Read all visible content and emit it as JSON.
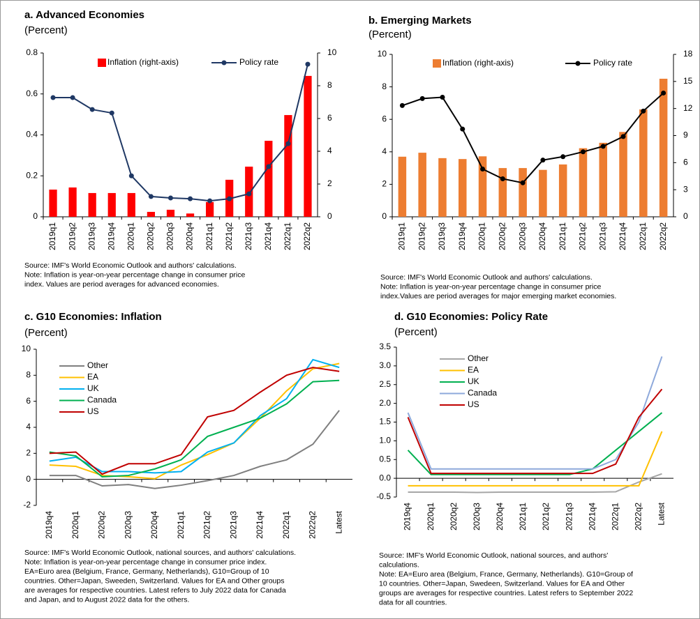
{
  "chart_data": [
    {
      "type": "combo",
      "title": "a. Advanced Economies",
      "subtitle": "(Percent)",
      "categories": [
        "2019q1",
        "2019q2",
        "2019q3",
        "2019q4",
        "2020q1",
        "2020q2",
        "2020q3",
        "2020q4",
        "2021q1",
        "2021q2",
        "2021q3",
        "2021q4",
        "2022q1",
        "2022q2"
      ],
      "series": [
        {
          "name": "Inflation (right-axis)",
          "type": "bar",
          "axis": "y2",
          "color": "#ff0000",
          "values": [
            1.66,
            1.79,
            1.45,
            1.45,
            1.45,
            0.3,
            0.43,
            0.2,
            0.9,
            2.26,
            3.06,
            4.64,
            6.21,
            8.6
          ]
        },
        {
          "name": "Policy rate",
          "type": "line",
          "color": "#1f3864",
          "values": [
            0.582,
            0.582,
            0.524,
            0.507,
            0.2,
            0.099,
            0.092,
            0.088,
            0.078,
            0.088,
            0.112,
            0.245,
            0.357,
            0.745
          ]
        }
      ],
      "ylim": [
        0,
        0.8
      ],
      "yticks": [
        0,
        0.2,
        0.4,
        0.6,
        0.8
      ],
      "y2lim": [
        0,
        10
      ],
      "y2ticks": [
        0,
        2,
        4,
        6,
        8,
        10
      ],
      "legend": "top",
      "notes": [
        "Source: IMF's World Economic Outlook and authors' calculations.",
        "Note: Inflation is year-on-year percentage change in consumer price",
        "index. Values are period averages for advanced economies."
      ]
    },
    {
      "type": "combo",
      "title": "b. Emerging Markets",
      "subtitle": "(Percent)",
      "categories": [
        "2019q1",
        "2019q2",
        "2019q3",
        "2019q4",
        "2020q1",
        "2020q2",
        "2020q3",
        "2020q4",
        "2021q1",
        "2021q2",
        "2021q3",
        "2021q4",
        "2022q1",
        "2022q2"
      ],
      "series": [
        {
          "name": "Inflation (right-axis)",
          "type": "bar",
          "axis": "y2",
          "color": "#ed7d31",
          "values": [
            6.66,
            7.1,
            6.5,
            6.4,
            6.7,
            5.4,
            5.4,
            5.2,
            5.8,
            7.6,
            8.2,
            9.4,
            11.9,
            15.3
          ]
        },
        {
          "name": "Policy rate",
          "type": "line",
          "color": "#000000",
          "values": [
            6.85,
            7.28,
            7.36,
            5.4,
            2.94,
            2.34,
            2.09,
            3.49,
            3.7,
            4.0,
            4.34,
            4.94,
            6.51,
            7.62
          ]
        }
      ],
      "ylim": [
        0,
        10
      ],
      "yticks": [
        0,
        2,
        4,
        6,
        8,
        10
      ],
      "y2lim": [
        0,
        18
      ],
      "y2ticks": [
        0,
        3,
        6,
        9,
        12,
        15,
        18
      ],
      "legend": "top",
      "notes": [
        "Source: IMF's World Economic Outlook and authors' calculations.",
        "Note: Inflation is year-on-year percentage change in consumer price",
        "index.Values are period averages for  major emerging market economies."
      ]
    },
    {
      "type": "line",
      "title": "c. G10 Economies: Inflation",
      "subtitle": "(Percent)",
      "categories": [
        "2019q4",
        "2020q1",
        "2020q2",
        "2020q3",
        "2020q4",
        "2021q1",
        "2021q2",
        "2021q3",
        "2021q4",
        "2022q1",
        "2022q2",
        "Latest"
      ],
      "series": [
        {
          "name": "Other",
          "color": "#7f7f7f",
          "values": [
            0.3,
            0.3,
            -0.5,
            -0.4,
            -0.7,
            -0.45,
            -0.1,
            0.3,
            1.0,
            1.5,
            2.7,
            5.3
          ]
        },
        {
          "name": "EA",
          "color": "#ffc000",
          "values": [
            1.1,
            1.0,
            0.3,
            0.2,
            0.05,
            1.1,
            1.9,
            2.8,
            4.7,
            6.8,
            8.5,
            8.9
          ]
        },
        {
          "name": "UK",
          "color": "#00b0f0",
          "values": [
            1.4,
            1.7,
            0.6,
            0.6,
            0.5,
            0.6,
            2.1,
            2.8,
            4.9,
            6.2,
            9.2,
            8.6
          ]
        },
        {
          "name": "Canada",
          "color": "#00b050",
          "values": [
            2.1,
            1.8,
            0.2,
            0.3,
            0.8,
            1.5,
            3.3,
            4.0,
            4.7,
            5.8,
            7.5,
            7.6
          ]
        },
        {
          "name": "US",
          "color": "#c00000",
          "values": [
            2.0,
            2.1,
            0.4,
            1.2,
            1.2,
            1.9,
            4.8,
            5.3,
            6.7,
            8.0,
            8.6,
            8.3
          ]
        }
      ],
      "ylim": [
        -2,
        10
      ],
      "yticks": [
        -2,
        0,
        2,
        4,
        6,
        8,
        10
      ],
      "legend": "upper left",
      "notes": [
        "Source: IMF's World Economic Outlook, national sources, and authors' calculations.",
        "Note: Inflation is year-on-year percentage change in consumer price index.",
        "EA=Euro area (Belgium, France, Germany, Netherlands), G10=Group of 10",
        "countries. Other=Japan, Sweeden, Switzerland. Values for EA and Other groups",
        "are averages for respective countries. Latest refers to July 2022 data for Canada",
        "and Japan, and to August 2022 data for the others."
      ]
    },
    {
      "type": "line",
      "title": "d. G10 Economies: Policy Rate",
      "subtitle": "(Percent)",
      "categories": [
        "2019q4",
        "2020q1",
        "2020q2",
        "2020q3",
        "2020q4",
        "2021q1",
        "2021q2",
        "2021q3",
        "2021q4",
        "2022q1",
        "2022q2",
        "Latest"
      ],
      "series": [
        {
          "name": "Other",
          "color": "#a6a6a6",
          "values": [
            -0.37,
            -0.37,
            -0.37,
            -0.38,
            -0.37,
            -0.37,
            -0.37,
            -0.37,
            -0.37,
            -0.36,
            -0.1,
            0.12
          ]
        },
        {
          "name": "EA",
          "color": "#ffc000",
          "values": [
            -0.2,
            -0.2,
            -0.2,
            -0.2,
            -0.2,
            -0.2,
            -0.2,
            -0.2,
            -0.2,
            -0.2,
            -0.2,
            1.25
          ]
        },
        {
          "name": "UK",
          "color": "#00b050",
          "values": [
            0.75,
            0.1,
            0.1,
            0.1,
            0.1,
            0.1,
            0.1,
            0.1,
            0.25,
            0.75,
            1.25,
            1.75
          ]
        },
        {
          "name": "Canada",
          "color": "#8ea9db",
          "values": [
            1.75,
            0.25,
            0.25,
            0.25,
            0.25,
            0.25,
            0.25,
            0.25,
            0.25,
            0.5,
            1.5,
            3.25
          ]
        },
        {
          "name": "US",
          "color": "#c00000",
          "values": [
            1.63,
            0.13,
            0.13,
            0.13,
            0.13,
            0.13,
            0.13,
            0.13,
            0.13,
            0.38,
            1.63,
            2.38
          ]
        }
      ],
      "ylim": [
        -0.5,
        3.5
      ],
      "yticks": [
        -0.5,
        {
          "value": 0,
          "label": "0.0"
        },
        0.5,
        {
          "value": 1,
          "label": "1.0"
        },
        1.5,
        {
          "value": 2,
          "label": "2.0"
        },
        2.5,
        {
          "value": 3,
          "label": "3.0"
        },
        3.5
      ],
      "legend": "upper left",
      "notes": [
        "Source: IMF's World Economic Outlook, national sources, and authors'",
        "calculations.",
        "Note: EA=Euro area (Belgium, France, Germany, Netherlands). G10=Group of",
        "10 countries. Other=Japan, Swedeen, Switzerland. Values for EA and Other",
        "groups are averages for respective countries. Latest refers to September 2022",
        "data for all countries."
      ]
    }
  ]
}
